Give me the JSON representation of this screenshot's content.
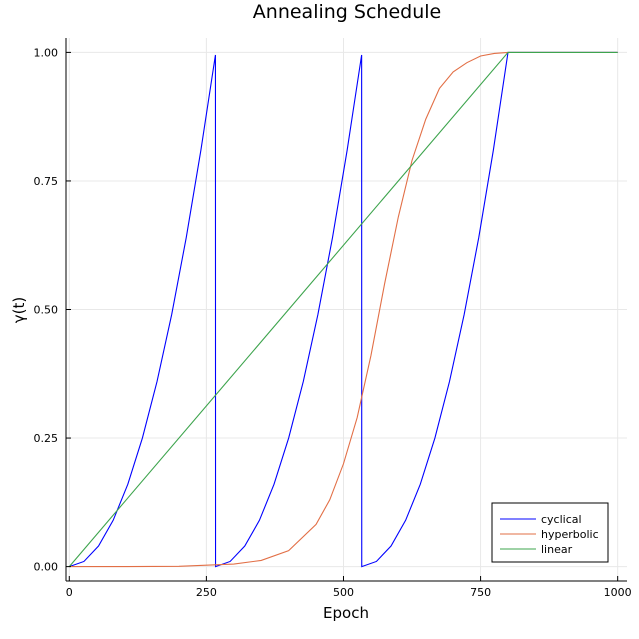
{
  "chart_data": {
    "type": "line",
    "title": "Annealing Schedule",
    "xlabel": "Epoch",
    "ylabel": "γ(t)",
    "xlim": [
      -6,
      1017
    ],
    "ylim": [
      -0.028,
      1.028
    ],
    "xticks": [
      0,
      250,
      500,
      750,
      1000
    ],
    "xtick_labels": [
      "0",
      "250",
      "500",
      "750",
      "1000"
    ],
    "yticks": [
      0,
      0.25,
      0.5,
      0.75,
      1.0
    ],
    "ytick_labels": [
      "0.00",
      "0.25",
      "0.50",
      "0.75",
      "1.00"
    ],
    "grid": true,
    "legend_position": "bottom-right",
    "series": [
      {
        "name": "cyclical",
        "color": "#0000ff",
        "x": [
          0,
          26.7,
          53.3,
          80,
          106.7,
          133.3,
          160,
          186.7,
          213.3,
          240,
          266.5,
          266.7,
          293.3,
          320,
          346.7,
          373.3,
          400,
          426.7,
          453.3,
          480,
          506.7,
          533.1,
          533.3,
          560,
          586.7,
          613.3,
          640,
          666.7,
          693.3,
          720,
          746.7,
          773.3,
          800,
          850,
          900,
          950,
          1000
        ],
        "values": [
          0,
          0.01,
          0.04,
          0.09,
          0.16,
          0.25,
          0.36,
          0.49,
          0.64,
          0.81,
          0.995,
          0,
          0.01,
          0.04,
          0.09,
          0.16,
          0.25,
          0.36,
          0.49,
          0.64,
          0.81,
          0.995,
          0,
          0.01,
          0.04,
          0.09,
          0.16,
          0.25,
          0.36,
          0.49,
          0.64,
          0.81,
          1.0,
          1.0,
          1.0,
          1.0,
          1.0
        ]
      },
      {
        "name": "hyperbolic",
        "color": "#e26f46",
        "x": [
          0,
          100,
          200,
          300,
          350,
          400,
          450,
          475,
          500,
          525,
          550,
          575,
          600,
          625,
          650,
          675,
          700,
          725,
          750,
          775,
          800,
          900,
          1000
        ],
        "values": [
          0,
          0,
          0.0005,
          0.005,
          0.012,
          0.031,
          0.082,
          0.13,
          0.2,
          0.29,
          0.41,
          0.55,
          0.68,
          0.79,
          0.87,
          0.93,
          0.962,
          0.98,
          0.993,
          0.998,
          1.0,
          1.0,
          1.0
        ]
      },
      {
        "name": "linear",
        "color": "#3da44d",
        "x": [
          0,
          800,
          1000
        ],
        "values": [
          0,
          1.0,
          1.0
        ]
      }
    ]
  }
}
